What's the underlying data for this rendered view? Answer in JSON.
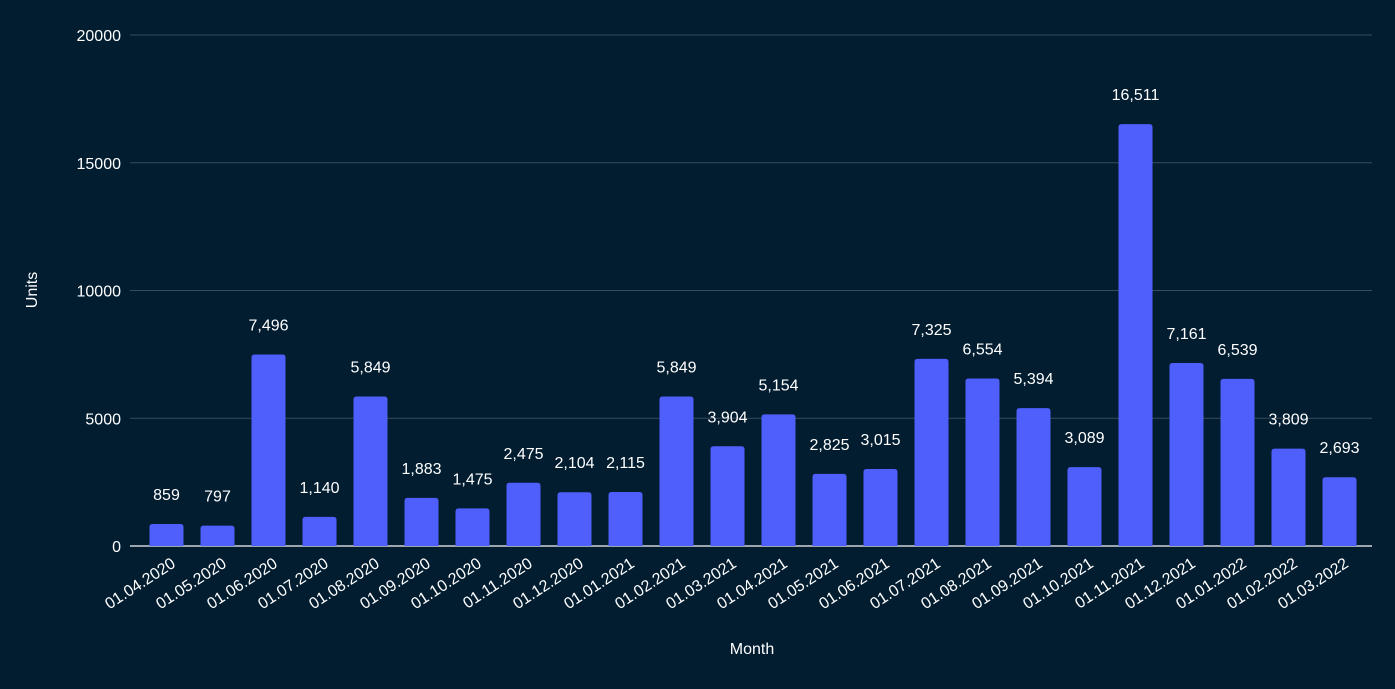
{
  "chart_data": {
    "type": "bar",
    "title": "",
    "xlabel": "Month",
    "ylabel": "Units",
    "ylim": [
      0,
      20000
    ],
    "yticks": [
      "0",
      "5000",
      "10000",
      "15000",
      "20000"
    ],
    "grid": true,
    "legend": "none",
    "categories": [
      "01.04.2020",
      "01.05.2020",
      "01.06.2020",
      "01.07.2020",
      "01.08.2020",
      "01.09.2020",
      "01.10.2020",
      "01.11.2020",
      "01.12.2020",
      "01.01.2021",
      "01.02.2021",
      "01.03.2021",
      "01.04.2021",
      "01.05.2021",
      "01.06.2021",
      "01.07.2021",
      "01.08.2021",
      "01.09.2021",
      "01.10.2021",
      "01.11.2021",
      "01.12.2021",
      "01.01.2022",
      "01.02.2022",
      "01.03.2022"
    ],
    "values": [
      859,
      797,
      7496,
      1140,
      5849,
      1883,
      1475,
      2475,
      2104,
      2115,
      5849,
      3904,
      5154,
      2825,
      3015,
      7325,
      6554,
      5394,
      3089,
      16511,
      7161,
      6539,
      3809,
      2693
    ],
    "data_labels": [
      "859",
      "797",
      "7,496",
      "1,140",
      "5,849",
      "1,883",
      "1,475",
      "2,475",
      "2,104",
      "2,115",
      "5,849",
      "3,904",
      "5,154",
      "2,825",
      "3,015",
      "7,325",
      "6,554",
      "5,394",
      "3,089",
      "16,511",
      "7,161",
      "6,539",
      "3,809",
      "2,693"
    ],
    "colors": {
      "background": "#021c30",
      "bar": "#4f5ffb",
      "grid": "#3a4b5c",
      "text": "#ffffff"
    }
  }
}
